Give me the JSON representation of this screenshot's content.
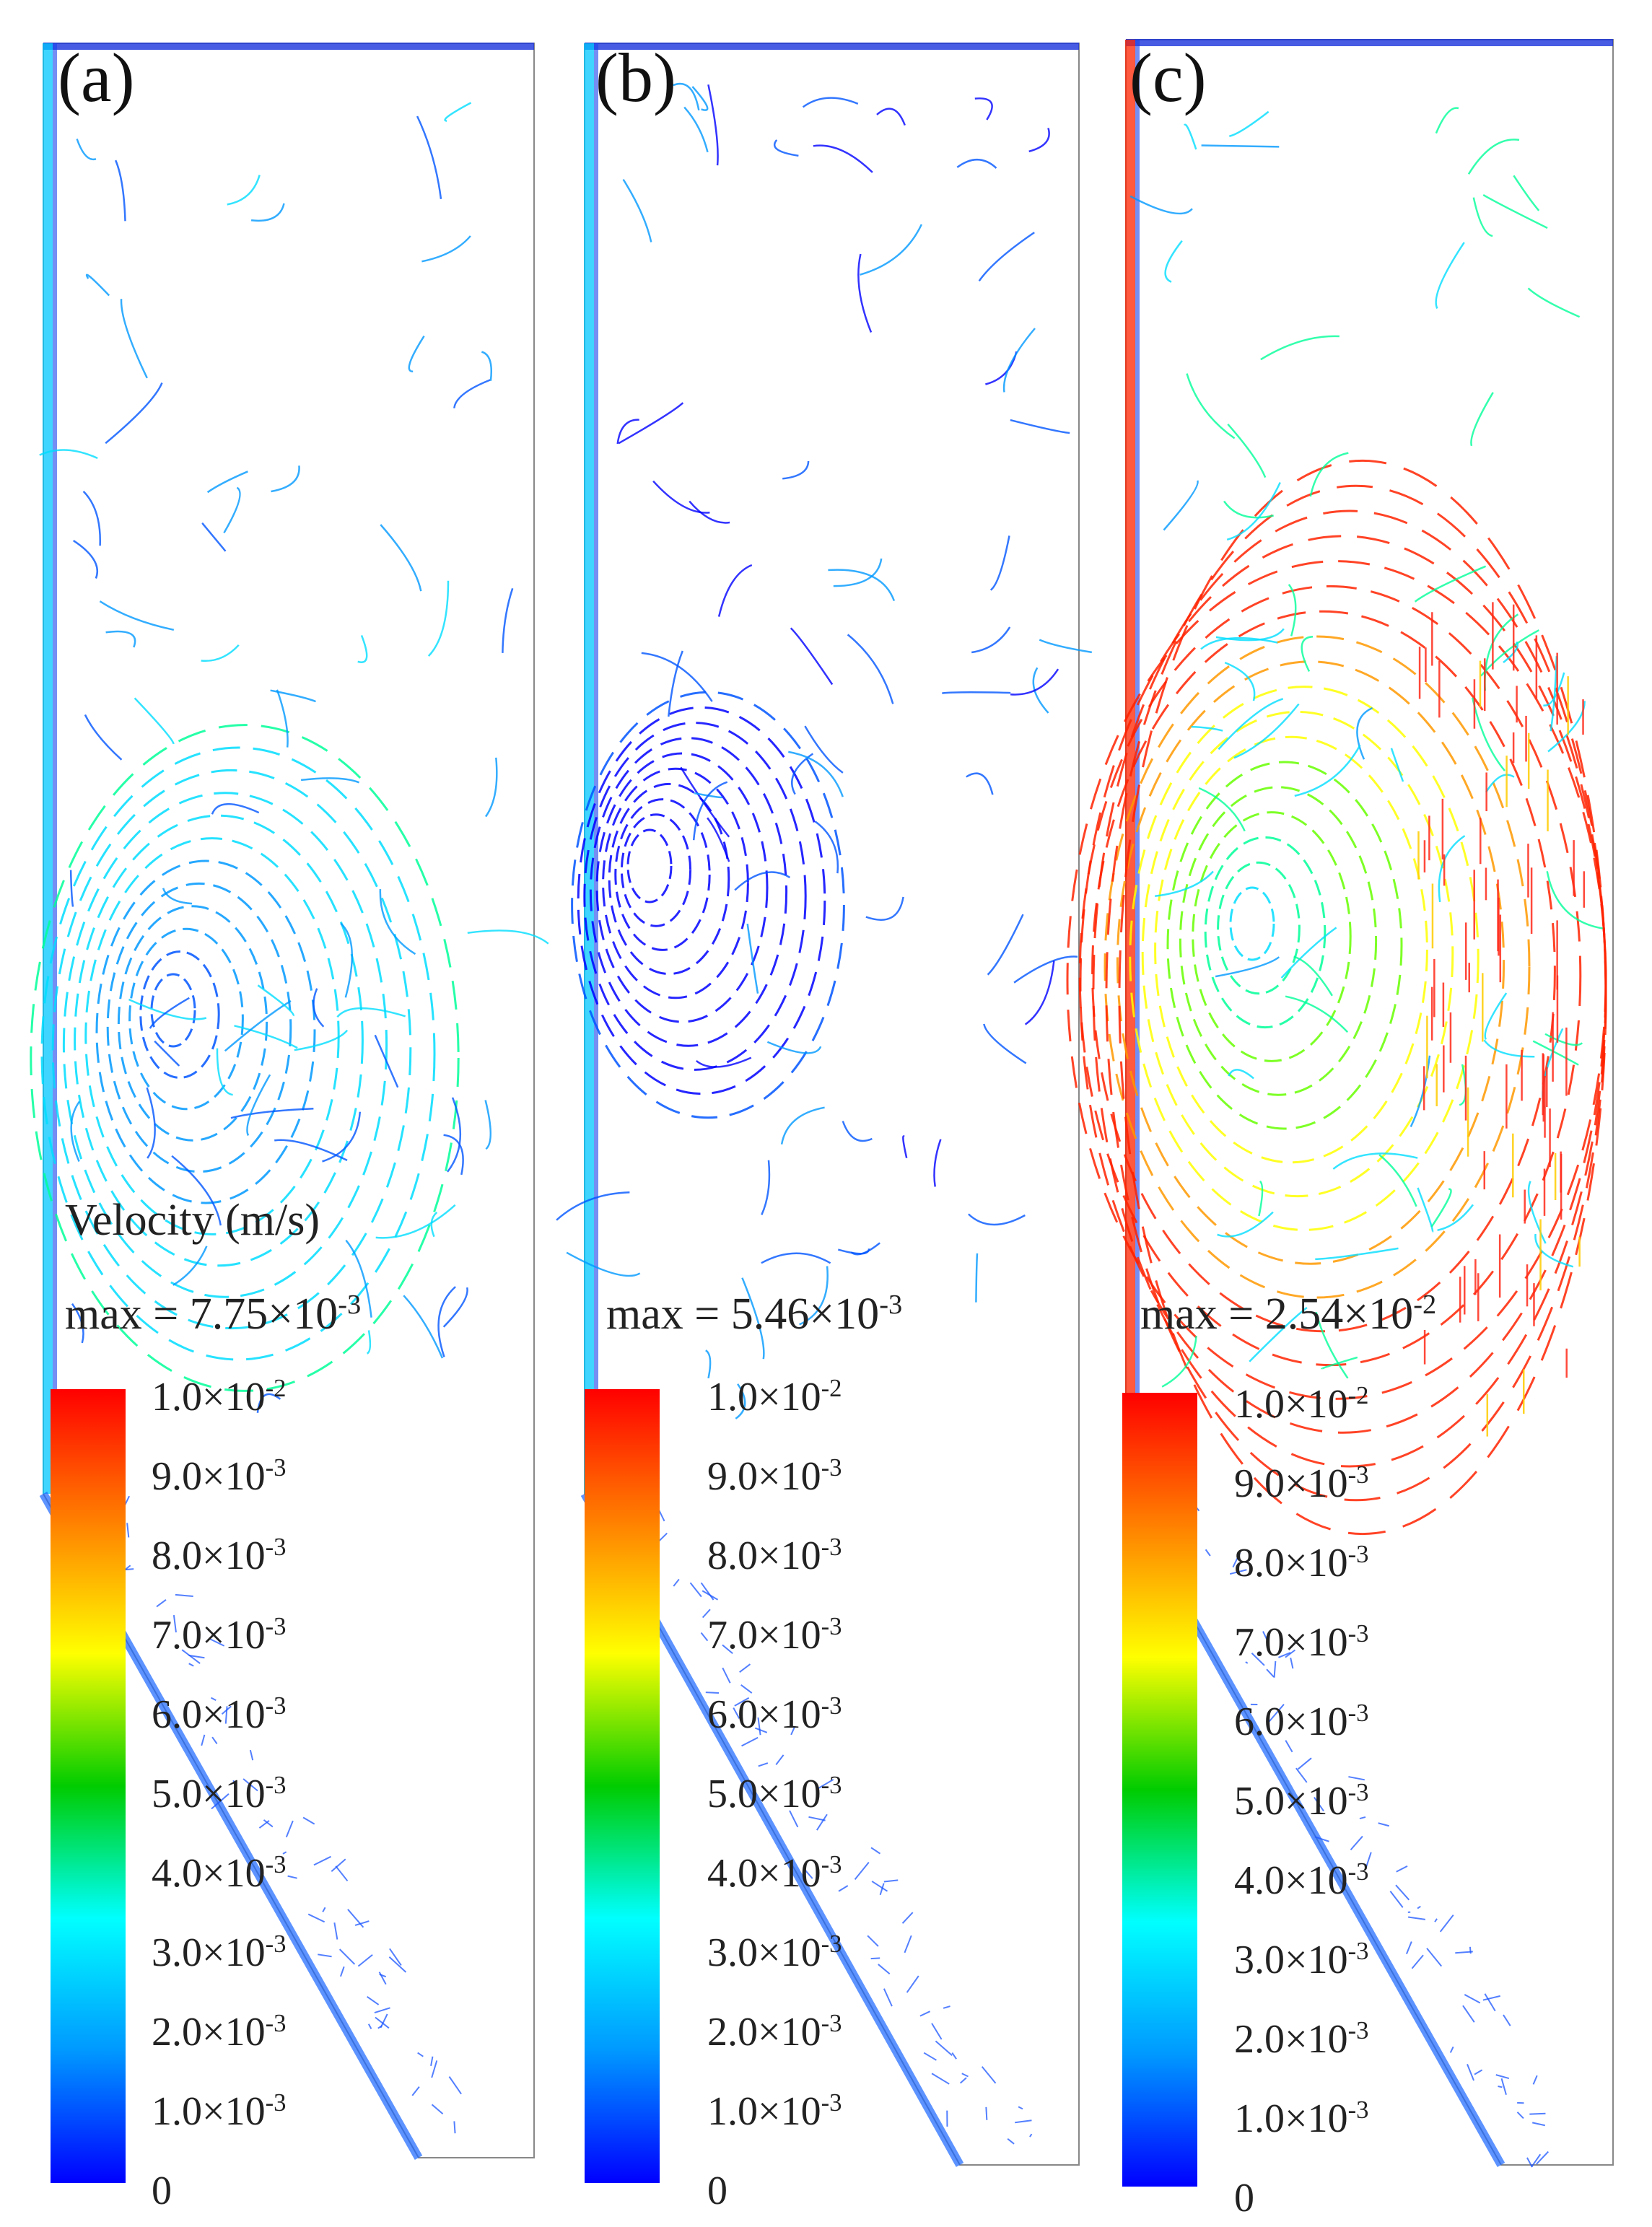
{
  "colorbar": {
    "colors": [
      "#ff0000",
      "#ff8000",
      "#ffff00",
      "#00cc00",
      "#00ffff",
      "#0099ff",
      "#0000ff"
    ],
    "ticks": [
      {
        "base": "1.0×10",
        "exp": "-2"
      },
      {
        "base": "9.0×10",
        "exp": "-3"
      },
      {
        "base": "8.0×10",
        "exp": "-3"
      },
      {
        "base": "7.0×10",
        "exp": "-3"
      },
      {
        "base": "6.0×10",
        "exp": "-3"
      },
      {
        "base": "5.0×10",
        "exp": "-3"
      },
      {
        "base": "4.0×10",
        "exp": "-3"
      },
      {
        "base": "3.0×10",
        "exp": "-3"
      },
      {
        "base": "2.0×10",
        "exp": "-3"
      },
      {
        "base": "1.0×10",
        "exp": "-3"
      },
      {
        "base": "0",
        "exp": ""
      }
    ]
  },
  "panels": [
    {
      "label": "(a)",
      "velocity_title": "Velocity (m/s)",
      "max_text": "max = 7.75×10",
      "max_exp": "-3"
    },
    {
      "label": "(b)",
      "velocity_title": "",
      "max_text": "max = 5.46×10",
      "max_exp": "-3"
    },
    {
      "label": "(c)",
      "velocity_title": "",
      "max_text": "max = 2.54×10",
      "max_exp": "-2"
    }
  ]
}
